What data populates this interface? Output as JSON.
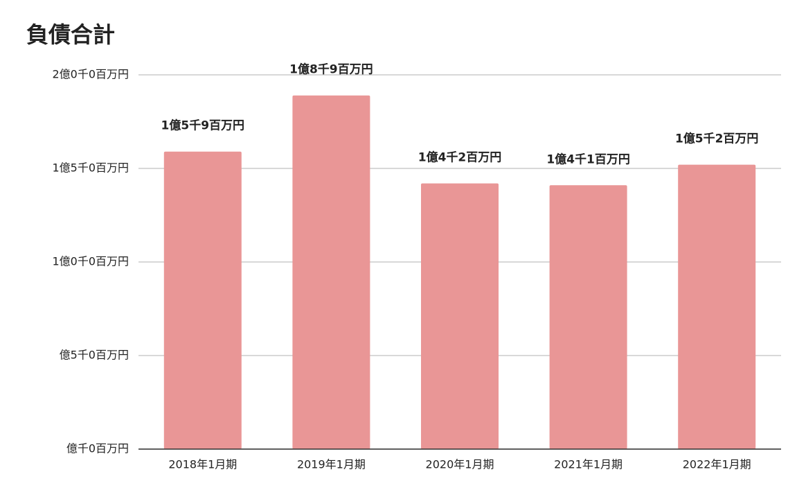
{
  "chart_data": {
    "type": "bar",
    "title": "負債合計",
    "categories": [
      "2018年1月期",
      "2019年1月期",
      "2020年1月期",
      "2021年1月期",
      "2022年1月期"
    ],
    "values": [
      159000000,
      189000000,
      142000000,
      141000000,
      152000000
    ],
    "value_labels": [
      "1億5千9百万円",
      "1億8千9百万円",
      "1億4千2百万円",
      "1億4千1百万円",
      "1億5千2百万円"
    ],
    "color": "#e99696",
    "ylim": [
      0,
      200000000
    ],
    "yticks": [
      {
        "value": 0,
        "label": "億千0百万円"
      },
      {
        "value": 50000000,
        "label": "億5千0百万円"
      },
      {
        "value": 100000000,
        "label": "1億0千0百万円"
      },
      {
        "value": 150000000,
        "label": "1億5千0百万円"
      },
      {
        "value": 200000000,
        "label": "2億0千0百万円"
      }
    ],
    "grid": true
  }
}
